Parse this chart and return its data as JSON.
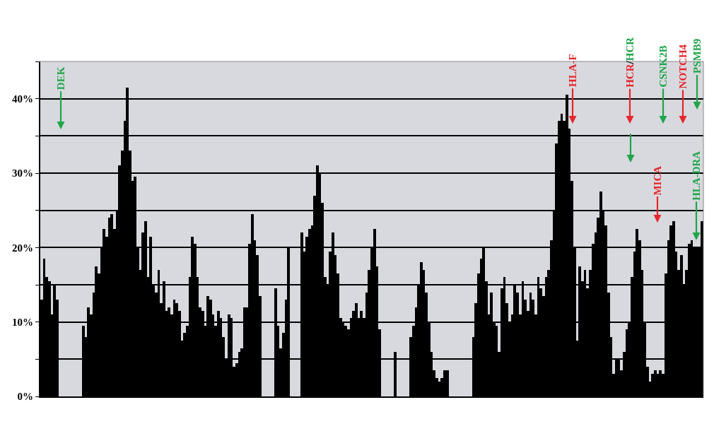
{
  "chart_data": {
    "type": "bar",
    "color": "#000000",
    "categories": [
      null,
      null,
      null,
      null,
      null,
      null,
      null,
      null,
      null,
      null,
      null,
      null,
      null,
      null,
      null,
      null,
      null,
      null,
      null,
      null,
      null,
      null,
      null,
      null,
      null,
      null,
      null,
      null,
      null,
      null,
      null,
      null,
      null,
      null,
      null,
      null,
      null,
      null,
      null,
      null,
      null,
      null,
      null,
      null,
      null,
      null,
      null,
      null,
      null,
      null,
      null,
      null,
      null,
      null,
      null,
      null,
      null,
      null,
      null,
      null,
      null,
      null,
      null,
      null,
      null,
      null,
      null,
      null,
      null,
      null,
      null,
      null,
      null,
      null,
      null,
      null,
      null,
      null,
      null,
      null,
      null,
      null,
      null,
      null,
      null,
      null,
      null,
      null,
      null,
      null,
      null,
      null,
      null,
      null,
      null,
      null,
      null,
      null,
      null,
      null,
      null,
      null,
      null,
      null,
      null,
      null,
      null,
      null,
      null,
      null,
      null,
      null,
      null,
      null,
      null,
      null,
      null,
      null,
      null,
      null,
      null,
      null,
      null,
      null,
      null,
      null,
      null,
      null,
      null,
      null,
      null,
      null,
      null,
      null,
      null,
      null,
      null,
      null,
      null,
      null,
      null,
      null,
      null,
      null,
      null,
      null,
      null,
      null,
      null,
      null,
      null,
      null,
      null,
      null,
      null,
      null,
      null,
      null,
      null,
      null,
      null,
      null,
      null,
      null,
      null,
      null,
      null,
      null,
      null,
      null,
      null,
      null,
      null,
      null,
      null,
      null,
      null,
      null,
      null,
      null,
      null,
      null,
      null,
      null,
      null,
      null,
      null,
      null,
      null,
      null,
      null,
      null,
      null,
      null,
      null,
      null,
      null,
      null,
      null,
      null,
      null,
      null,
      null,
      null,
      null,
      null,
      null,
      null,
      null,
      null,
      null,
      null,
      null,
      null,
      null,
      null,
      null,
      null,
      null,
      null,
      null,
      null,
      null,
      null,
      null,
      null,
      null,
      null,
      null,
      null,
      null,
      null,
      null,
      null,
      null,
      null,
      null,
      null,
      null,
      null,
      null,
      null,
      null,
      null,
      null,
      null,
      null,
      null,
      null,
      null,
      null,
      null,
      null,
      null,
      null
    ],
    "values": [
      13,
      18.5,
      16,
      15.5,
      11,
      15,
      13,
      0,
      0,
      0,
      0,
      0,
      0,
      0,
      0,
      0,
      9.5,
      8,
      12,
      11,
      14,
      17.5,
      16.5,
      20,
      22.5,
      21.5,
      24,
      24.5,
      22.5,
      25,
      31,
      33,
      37,
      41.5,
      33,
      29,
      29.5,
      20,
      17,
      22,
      23.5,
      16,
      21.5,
      15,
      14,
      17,
      12.5,
      15.5,
      11.5,
      12,
      11,
      13,
      12.5,
      11.5,
      7.5,
      8.5,
      9.5,
      16,
      21.5,
      20.5,
      16,
      12,
      11.5,
      9.5,
      13.5,
      13,
      11,
      9.5,
      11.5,
      10.5,
      8,
      5,
      11,
      10.5,
      4,
      4.5,
      6,
      6.5,
      12,
      12,
      20.5,
      24.5,
      21,
      19,
      13.5,
      0,
      0,
      0,
      0,
      0,
      14.5,
      9.5,
      6.5,
      8.5,
      13,
      20,
      0,
      0,
      0,
      0,
      22,
      19.5,
      21.5,
      22.5,
      23,
      27,
      31,
      30,
      26,
      16,
      15,
      19.5,
      22,
      19,
      16.5,
      10.5,
      10,
      9.5,
      9,
      10.5,
      11.5,
      12.5,
      10.5,
      11.5,
      10.5,
      14,
      17,
      20,
      22.5,
      17.5,
      9,
      0,
      0,
      0,
      0,
      0,
      6,
      0,
      0,
      0,
      0,
      0,
      8,
      9.5,
      12,
      15,
      18,
      17,
      14,
      10,
      6,
      3.5,
      2.5,
      2,
      2.5,
      3.5,
      3.5,
      0,
      0,
      0,
      0,
      0,
      0,
      0,
      0,
      0,
      8,
      12.5,
      16.5,
      18.5,
      20,
      15.5,
      11,
      14,
      10,
      9.5,
      6,
      14.5,
      16,
      12.5,
      10,
      11,
      15,
      14,
      11,
      15.5,
      13,
      11.5,
      14,
      13,
      11,
      16,
      14.5,
      13.5,
      16,
      17,
      21,
      25,
      34,
      37,
      38,
      37,
      40.5,
      36,
      29,
      20,
      7.5,
      17.5,
      15.5,
      17,
      14.5,
      17,
      20.5,
      22,
      24,
      27.5,
      25,
      23,
      14,
      8,
      3,
      5,
      5,
      3.5,
      6,
      9,
      10,
      16,
      19.5,
      22.5,
      21,
      17,
      10,
      4,
      2,
      3,
      3.5,
      3,
      3.5,
      3,
      16.5,
      21,
      23,
      23.5,
      19.5,
      17,
      19,
      15,
      17,
      20.5,
      21,
      20,
      20,
      20,
      23.5
    ],
    "ylim": [
      0,
      45
    ],
    "yticks": [
      {
        "value": 0,
        "label": "0%"
      },
      {
        "value": 5,
        "label": null
      },
      {
        "value": 10,
        "label": "10%"
      },
      {
        "value": 15,
        "label": null
      },
      {
        "value": 20,
        "label": "20%"
      },
      {
        "value": 25,
        "label": null
      },
      {
        "value": 30,
        "label": "30%"
      },
      {
        "value": 35,
        "label": null
      },
      {
        "value": 40,
        "label": "40%"
      },
      {
        "value": 45,
        "label": null
      }
    ],
    "grid": "y",
    "tick_labels": "y",
    "annotations": [
      "DEK",
      "HLA-F",
      "HCR/HCR",
      "CSNK2B",
      "NOTCH4",
      "PSMB9",
      "MICA",
      "HLA-DRA"
    ]
  }
}
